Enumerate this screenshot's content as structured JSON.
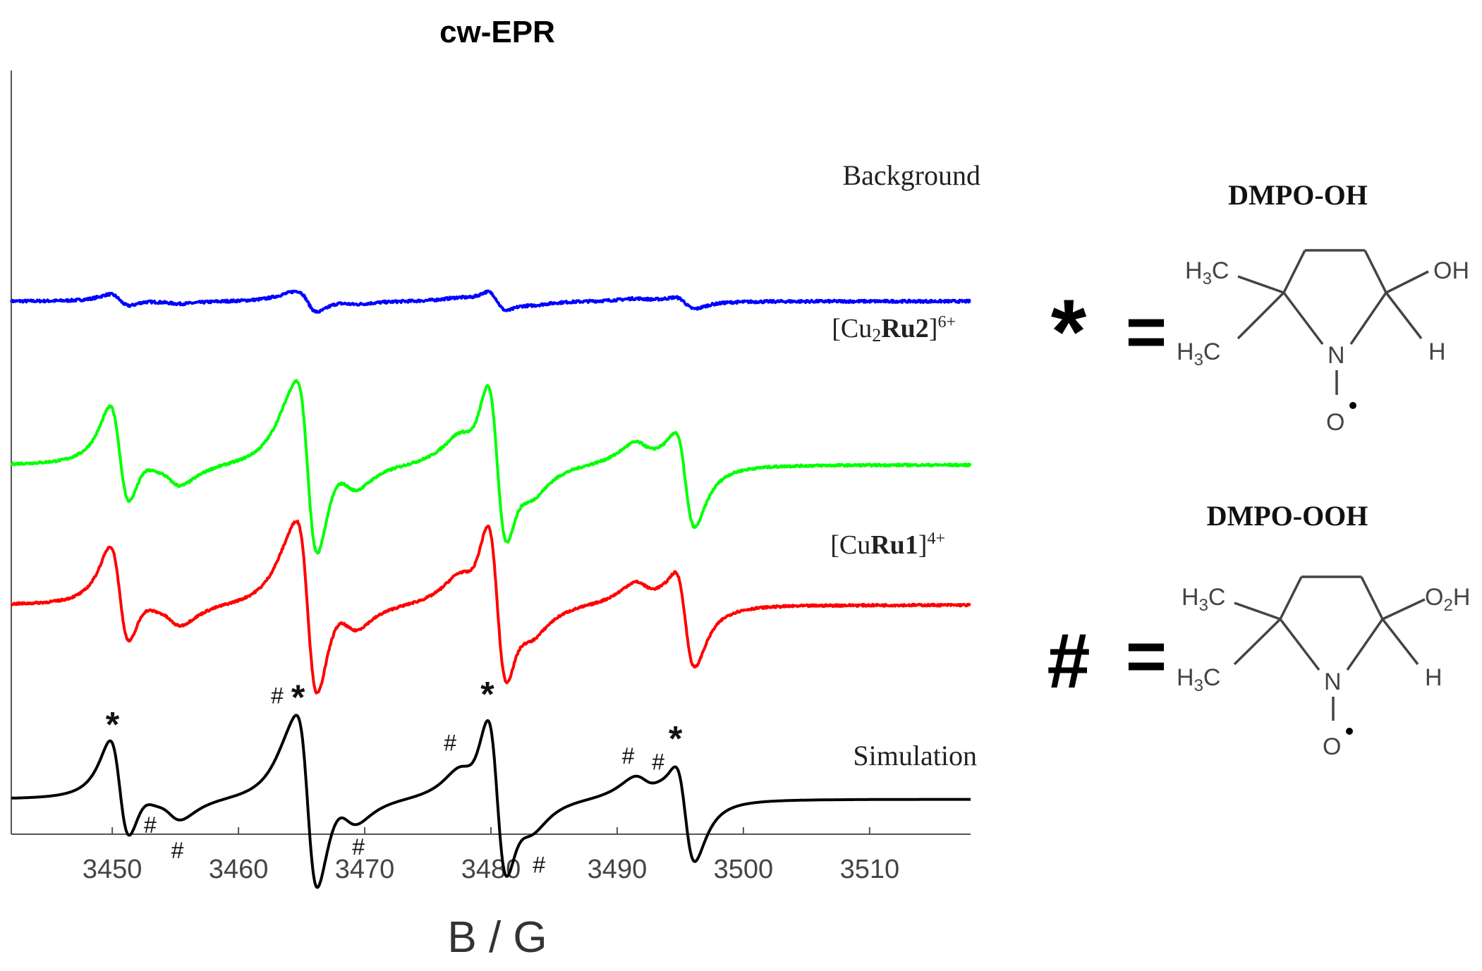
{
  "chart_data": {
    "type": "line",
    "title": "cw-EPR",
    "xlabel": "B / G",
    "ylabel": "",
    "xlim": [
      3442,
      3518
    ],
    "x_ticks": [
      3450,
      3460,
      3470,
      3480,
      3490,
      3500,
      3510
    ],
    "x_tick_labels": [
      "3450",
      "3460",
      "3470",
      "3480",
      "3490",
      "3500",
      "3510"
    ],
    "grid": false,
    "y_ticks_shown": false,
    "series": [
      {
        "key": "background",
        "label": "Background",
        "color": "#0000ff",
        "offset": 3.95,
        "amp_scale": 0.12,
        "noise": 0.012
      },
      {
        "key": "cu2ru2",
        "label_parts": [
          "[Cu",
          "2",
          "Ru2",
          "]",
          "6+"
        ],
        "color": "#00ff00",
        "offset": 2.35,
        "amp_scale": 1.0,
        "noise": 0.01
      },
      {
        "key": "curu1",
        "label_parts": [
          "[Cu",
          "Ru1",
          "]",
          "4+"
        ],
        "color": "#ff0000",
        "offset": 0.98,
        "amp_scale": 1.0,
        "noise": 0.01
      },
      {
        "key": "simulation",
        "label": "Simulation",
        "color": "#000000",
        "offset": -0.92,
        "amp_scale": 1.0,
        "noise": 0
      }
    ],
    "lines_dmpo_oh": {
      "marker": "*",
      "centers": [
        3450.6,
        3465.5,
        3480.5,
        3495.4
      ],
      "amplitudes": [
        0.75,
        1.25,
        1.25,
        0.75
      ],
      "width": 0.8
    },
    "lines_dmpo_ooh": {
      "marker": "#",
      "centers": [
        3453.0,
        3454.6,
        3464.4,
        3468.5,
        3478.2,
        3482.6,
        3492.2,
        3493.8
      ],
      "amplitudes": [
        0.18,
        0.18,
        0.22,
        0.22,
        0.22,
        0.22,
        0.18,
        0.18
      ],
      "width": 1.1
    },
    "sim_markers": [
      {
        "text": "*",
        "x": 3450.3,
        "side": "above"
      },
      {
        "text": "*",
        "x": 3465.0,
        "side": "above"
      },
      {
        "text": "*",
        "x": 3480.0,
        "side": "above"
      },
      {
        "text": "*",
        "x": 3494.9,
        "side": "above"
      },
      {
        "text": "#",
        "x": 3464.3,
        "side": "left"
      },
      {
        "text": "#",
        "x": 3478.0,
        "side": "left"
      },
      {
        "text": "#",
        "x": 3492.1,
        "side": "left"
      },
      {
        "text": "#",
        "x": 3493.7,
        "side": "left2"
      },
      {
        "text": "#",
        "x": 3453.0,
        "side": "below"
      },
      {
        "text": "#",
        "x": 3454.6,
        "side": "below2"
      },
      {
        "text": "#",
        "x": 3468.5,
        "side": "below3"
      },
      {
        "text": "#",
        "x": 3482.8,
        "side": "below3"
      }
    ]
  },
  "legend_key": {
    "oh": {
      "title": "DMPO-OH",
      "symbol": "*",
      "equals": "="
    },
    "ooh": {
      "title": "DMPO-OOH",
      "symbol": "#",
      "equals": "="
    }
  },
  "molecule_labels": {
    "h3c": "H",
    "h3c_sub": "3",
    "h3c_tail": "C",
    "oh": "OH",
    "o2h_o": "O",
    "o2h_sub": "2",
    "o2h_h": "H",
    "h": "H",
    "n": "N",
    "o": "O"
  }
}
